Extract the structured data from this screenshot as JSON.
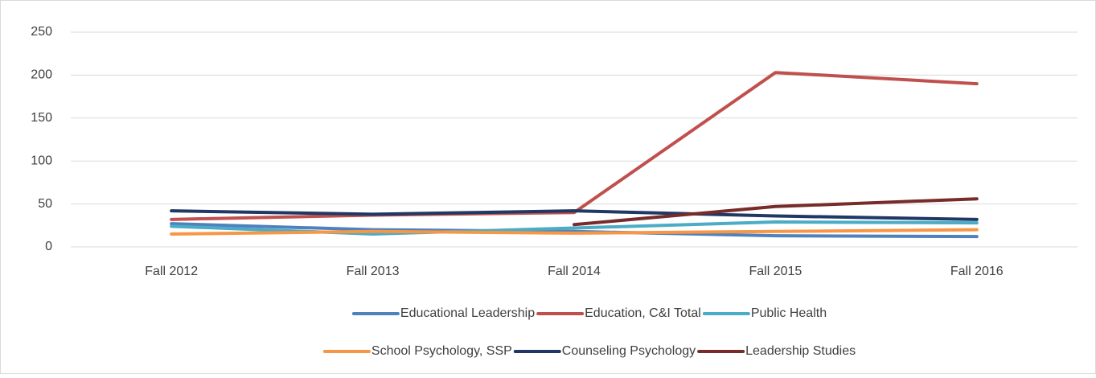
{
  "chart_data": {
    "type": "line",
    "categories": [
      "Fall 2012",
      "Fall 2013",
      "Fall 2014",
      "Fall 2015",
      "Fall 2016"
    ],
    "series": [
      {
        "name": "Educational Leadership",
        "color": "#4f81bd",
        "values": [
          27,
          20,
          18,
          13,
          12
        ]
      },
      {
        "name": "Education, C&I Total",
        "color": "#c0504d",
        "values": [
          32,
          37,
          40,
          203,
          190
        ]
      },
      {
        "name": "Public Health",
        "color": "#4bacc6",
        "values": [
          24,
          15,
          22,
          29,
          28
        ]
      },
      {
        "name": "School Psychology, SSP",
        "color": "#f79646",
        "values": [
          15,
          18,
          16,
          18,
          20
        ]
      },
      {
        "name": "Counseling Psychology",
        "color": "#1f3864",
        "values": [
          42,
          38,
          42,
          36,
          32
        ]
      },
      {
        "name": "Leadership Studies",
        "color": "#772c2a",
        "values": [
          null,
          null,
          26,
          47,
          56
        ]
      }
    ],
    "ylim": [
      0,
      250
    ],
    "yticks": [
      0,
      50,
      100,
      150,
      200,
      250
    ],
    "grid": true,
    "legend": "bottom"
  }
}
